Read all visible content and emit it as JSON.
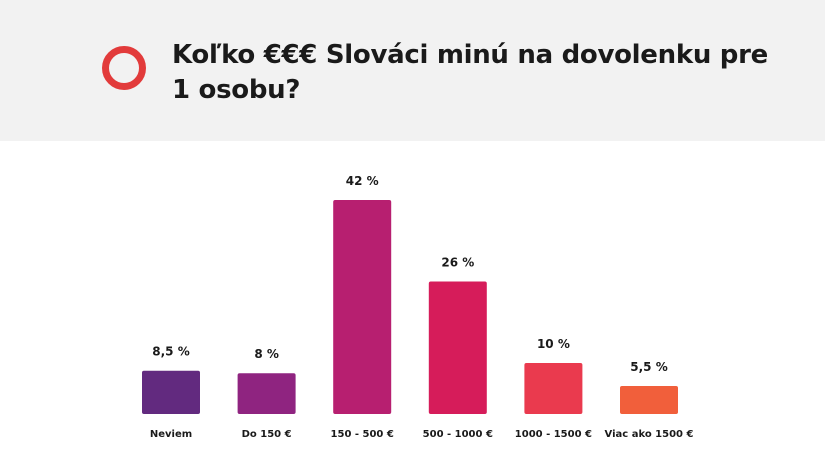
{
  "header": {
    "title": "Koľko €€€ Slováci minú na dovolenku pre 1 osobu?",
    "ring_color": "#e23b3b"
  },
  "chart_data": {
    "type": "bar",
    "categories": [
      "Neviem",
      "Do 150 €",
      "150 - 500 €",
      "500 - 1000 €",
      "1000 - 1500 €",
      "Viac ako 1500 €"
    ],
    "values": [
      8.5,
      8,
      42,
      26,
      10,
      5.5
    ],
    "value_labels": [
      "8,5 %",
      "8 %",
      "42 %",
      "26 %",
      "10 %",
      "5,5 %"
    ],
    "colors": [
      "#622a7f",
      "#8f2480",
      "#b71f70",
      "#d61c5a",
      "#ea3a4e",
      "#f15f3b"
    ],
    "ylim": [
      0,
      42
    ]
  }
}
